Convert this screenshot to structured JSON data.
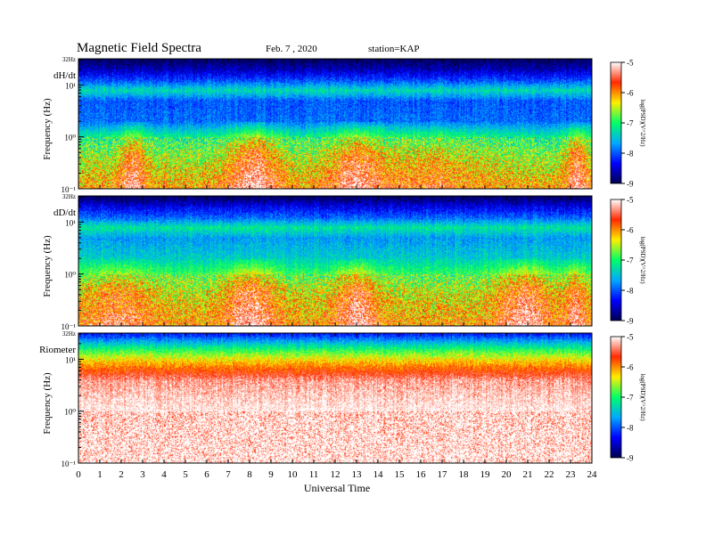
{
  "header": {
    "title": "Magnetic  Field  Spectra",
    "date": "Feb. 7  , 2020",
    "station": "station=KAP"
  },
  "colorbar": {
    "label": "log(PSD)(V^2/Hz)",
    "ticks": [
      "-5",
      "-6",
      "-7",
      "-8",
      "-9"
    ],
    "colors": [
      "#ffffff",
      "#ff2a00",
      "#ffee00",
      "#00ff66",
      "#00aaff",
      "#0000ff",
      "#000050"
    ]
  },
  "x_axis": {
    "label": "Universal Time",
    "ticks": [
      "0",
      "1",
      "2",
      "3",
      "4",
      "5",
      "6",
      "7",
      "8",
      "9",
      "10",
      "11",
      "12",
      "13",
      "14",
      "15",
      "16",
      "17",
      "18",
      "19",
      "20",
      "21",
      "22",
      "23",
      "24"
    ]
  },
  "chart_data": [
    {
      "type": "heatmap",
      "panel_label": "dH/dt",
      "ylabel": "Frequency  (Hz)",
      "top_label": "32Hz",
      "y_ticks": [
        "10¹",
        "10⁰",
        "10⁻¹"
      ],
      "xlim": [
        0,
        24
      ],
      "ylim_hz": [
        0.1,
        32
      ],
      "log_y": true,
      "color_scale": [
        -9,
        -5
      ],
      "profile": [
        {
          "f": 32,
          "v": -9.0
        },
        {
          "f": 20,
          "v": -8.6
        },
        {
          "f": 12,
          "v": -8.0
        },
        {
          "f": 8,
          "v": -7.3
        },
        {
          "f": 5,
          "v": -8.0
        },
        {
          "f": 2,
          "v": -7.9
        },
        {
          "f": 1,
          "v": -7.1
        },
        {
          "f": 0.5,
          "v": -6.7
        },
        {
          "f": 0.2,
          "v": -6.3
        },
        {
          "f": 0.1,
          "v": -6.0
        }
      ],
      "enhancements": [
        {
          "t": 2.5,
          "width": 0.6,
          "dv": 0.9
        },
        {
          "t": 8.2,
          "width": 1.2,
          "dv": 1.0
        },
        {
          "t": 13.0,
          "width": 1.2,
          "dv": 0.9
        },
        {
          "t": 16.5,
          "width": 2.0,
          "dv": 0.4
        },
        {
          "t": 23.3,
          "width": 0.5,
          "dv": 0.9
        }
      ]
    },
    {
      "type": "heatmap",
      "panel_label": "dD/dt",
      "ylabel": "Frequency  (Hz)",
      "top_label": "32Hz",
      "y_ticks": [
        "10¹",
        "10⁰",
        "10⁻¹"
      ],
      "xlim": [
        0,
        24
      ],
      "ylim_hz": [
        0.1,
        32
      ],
      "log_y": true,
      "color_scale": [
        -9,
        -5
      ],
      "profile": [
        {
          "f": 32,
          "v": -9.0
        },
        {
          "f": 20,
          "v": -8.4
        },
        {
          "f": 12,
          "v": -7.9
        },
        {
          "f": 8,
          "v": -7.2
        },
        {
          "f": 5,
          "v": -7.7
        },
        {
          "f": 2,
          "v": -7.4
        },
        {
          "f": 1,
          "v": -6.9
        },
        {
          "f": 0.5,
          "v": -6.5
        },
        {
          "f": 0.2,
          "v": -6.2
        },
        {
          "f": 0.1,
          "v": -6.0
        }
      ],
      "enhancements": [
        {
          "t": 2.0,
          "width": 1.5,
          "dv": 0.6
        },
        {
          "t": 8.0,
          "width": 1.2,
          "dv": 0.9
        },
        {
          "t": 13.0,
          "width": 1.0,
          "dv": 0.9
        },
        {
          "t": 20.8,
          "width": 1.2,
          "dv": 0.9
        },
        {
          "t": 23.2,
          "width": 0.5,
          "dv": 0.8
        }
      ]
    },
    {
      "type": "heatmap",
      "panel_label": "Riometer",
      "ylabel": "Frequency  (Hz)",
      "top_label": "32Hz",
      "y_ticks": [
        "10¹",
        "10⁰",
        "10⁻¹"
      ],
      "xlim": [
        0,
        24
      ],
      "ylim_hz": [
        0.1,
        32
      ],
      "log_y": true,
      "color_scale": [
        -9,
        -5
      ],
      "profile": [
        {
          "f": 32,
          "v": -8.3
        },
        {
          "f": 22,
          "v": -7.6
        },
        {
          "f": 15,
          "v": -6.9
        },
        {
          "f": 10,
          "v": -6.3
        },
        {
          "f": 7,
          "v": -5.9
        },
        {
          "f": 4,
          "v": -5.3
        },
        {
          "f": 1,
          "v": -5.0
        },
        {
          "f": 0.1,
          "v": -4.9
        }
      ],
      "enhancements": []
    }
  ]
}
